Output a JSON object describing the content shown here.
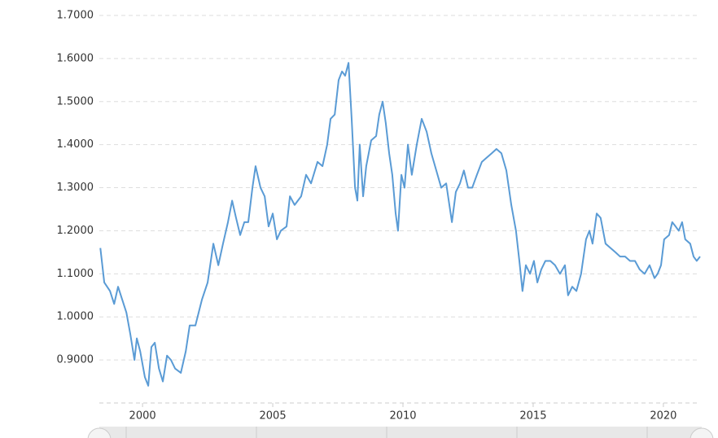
{
  "chart_data": {
    "type": "line",
    "x": [
      1998.38,
      1998.53,
      1998.75,
      1998.91,
      1999.06,
      1999.22,
      1999.38,
      1999.53,
      1999.69,
      1999.78,
      1999.91,
      2000.09,
      2000.22,
      2000.34,
      2000.47,
      2000.63,
      2000.78,
      2000.94,
      2001.09,
      2001.25,
      2001.47,
      2001.66,
      2001.81,
      2002.03,
      2002.28,
      2002.5,
      2002.72,
      2002.91,
      2003.09,
      2003.28,
      2003.44,
      2003.59,
      2003.75,
      2003.91,
      2004.06,
      2004.22,
      2004.34,
      2004.53,
      2004.69,
      2004.84,
      2005.0,
      2005.16,
      2005.31,
      2005.53,
      2005.66,
      2005.84,
      2006.09,
      2006.28,
      2006.47,
      2006.72,
      2006.91,
      2007.09,
      2007.22,
      2007.38,
      2007.53,
      2007.66,
      2007.78,
      2007.91,
      2008.03,
      2008.16,
      2008.25,
      2008.34,
      2008.47,
      2008.59,
      2008.78,
      2008.97,
      2009.09,
      2009.22,
      2009.34,
      2009.47,
      2009.59,
      2009.72,
      2009.81,
      2009.94,
      2010.06,
      2010.19,
      2010.34,
      2010.53,
      2010.72,
      2010.91,
      2011.09,
      2011.28,
      2011.47,
      2011.66,
      2011.88,
      2012.03,
      2012.19,
      2012.34,
      2012.5,
      2012.66,
      2012.84,
      2013.03,
      2013.22,
      2013.41,
      2013.59,
      2013.78,
      2013.97,
      2014.16,
      2014.34,
      2014.47,
      2014.59,
      2014.72,
      2014.88,
      2015.03,
      2015.16,
      2015.31,
      2015.47,
      2015.66,
      2015.84,
      2016.03,
      2016.22,
      2016.34,
      2016.5,
      2016.66,
      2016.84,
      2017.03,
      2017.16,
      2017.28,
      2017.44,
      2017.59,
      2017.78,
      2017.97,
      2018.16,
      2018.34,
      2018.53,
      2018.72,
      2018.91,
      2019.09,
      2019.28,
      2019.47,
      2019.66,
      2019.78,
      2019.91,
      2020.03,
      2020.22,
      2020.34,
      2020.47,
      2020.59,
      2020.72,
      2020.84,
      2021.03,
      2021.16,
      2021.28,
      2021.41
    ],
    "series": [
      {
        "color": "#5a9bd5",
        "values": [
          1.16,
          1.08,
          1.06,
          1.03,
          1.07,
          1.04,
          1.01,
          0.96,
          0.9,
          0.95,
          0.92,
          0.86,
          0.84,
          0.93,
          0.94,
          0.88,
          0.85,
          0.91,
          0.9,
          0.88,
          0.87,
          0.92,
          0.98,
          0.98,
          1.04,
          1.08,
          1.17,
          1.12,
          1.17,
          1.22,
          1.27,
          1.23,
          1.19,
          1.22,
          1.22,
          1.3,
          1.35,
          1.3,
          1.28,
          1.21,
          1.24,
          1.18,
          1.2,
          1.21,
          1.28,
          1.26,
          1.28,
          1.33,
          1.31,
          1.36,
          1.35,
          1.4,
          1.46,
          1.47,
          1.55,
          1.57,
          1.56,
          1.59,
          1.46,
          1.3,
          1.27,
          1.4,
          1.28,
          1.35,
          1.41,
          1.42,
          1.47,
          1.5,
          1.45,
          1.38,
          1.33,
          1.24,
          1.2,
          1.33,
          1.3,
          1.4,
          1.33,
          1.4,
          1.46,
          1.43,
          1.38,
          1.34,
          1.3,
          1.31,
          1.22,
          1.29,
          1.31,
          1.34,
          1.3,
          1.3,
          1.33,
          1.36,
          1.37,
          1.38,
          1.39,
          1.38,
          1.34,
          1.26,
          1.2,
          1.13,
          1.06,
          1.12,
          1.1,
          1.13,
          1.08,
          1.11,
          1.13,
          1.13,
          1.12,
          1.1,
          1.12,
          1.05,
          1.07,
          1.06,
          1.1,
          1.18,
          1.2,
          1.17,
          1.24,
          1.23,
          1.17,
          1.16,
          1.15,
          1.14,
          1.14,
          1.13,
          1.13,
          1.11,
          1.1,
          1.12,
          1.09,
          1.1,
          1.12,
          1.18,
          1.19,
          1.22,
          1.21,
          1.2,
          1.22,
          1.18,
          1.17,
          1.14,
          1.13,
          1.14
        ]
      }
    ],
    "xlim": [
      1998.34,
      2021.41
    ],
    "xticks": [
      2000,
      2005,
      2010,
      2015,
      2020
    ],
    "ylim": [
      0.8,
      1.7
    ],
    "yticks": [
      {
        "value": 0.9,
        "label": "0.9000"
      },
      {
        "value": 1.0,
        "label": "1.0000"
      },
      {
        "value": 1.1,
        "label": "1.1000"
      },
      {
        "value": 1.2,
        "label": "1.2000"
      },
      {
        "value": 1.3,
        "label": "1.3000"
      },
      {
        "value": 1.4,
        "label": "1.4000"
      },
      {
        "value": 1.5,
        "label": "1.5000"
      },
      {
        "value": 1.6,
        "label": "1.6000"
      },
      {
        "value": 1.7,
        "label": "1.7000"
      }
    ],
    "grid": true
  }
}
